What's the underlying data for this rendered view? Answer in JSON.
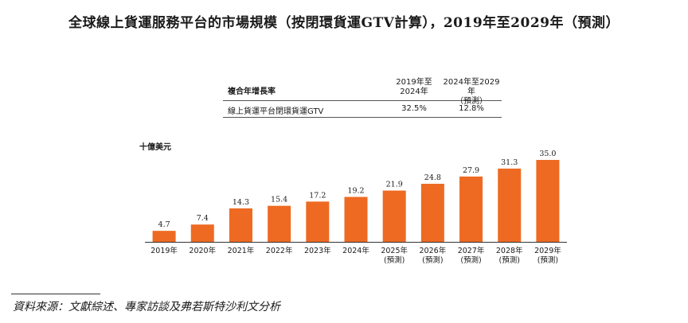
{
  "title": "全球線上貨運服務平台的市場規模（按閉環貨運GTV計算），2019年至2029年（預測）",
  "cagr_table": {
    "header_label": "複合年增長率",
    "col_a": [
      "2019年至",
      "2024年"
    ],
    "col_b": [
      "2024年至2029年",
      "（預測）"
    ],
    "row_label": "線上貨運平台閉環貨運GTV",
    "row_a": "32.5%",
    "row_b": "12.8%"
  },
  "unit_label": "十億美元",
  "source": "資料來源：文獻綜述、專家訪談及弗若斯特沙利文分析",
  "colors": {
    "bar": "#ee6a22",
    "axis": "#333333",
    "text": "#1a1a1a"
  },
  "chart_data": {
    "type": "bar",
    "title": "全球線上貨運服務平台的市場規模（按閉環貨運GTV計算），2019年至2029年（預測）",
    "ylabel": "十億美元",
    "ylim": [
      0,
      35
    ],
    "grid": false,
    "categories": [
      [
        "2019年"
      ],
      [
        "2020年"
      ],
      [
        "2021年"
      ],
      [
        "2022年"
      ],
      [
        "2023年"
      ],
      [
        "2024年"
      ],
      [
        "2025年",
        "(預測)"
      ],
      [
        "2026年",
        "(預測)"
      ],
      [
        "2027年",
        "(預測)"
      ],
      [
        "2028年",
        "(預測)"
      ],
      [
        "2029年",
        "(預測)"
      ]
    ],
    "values": [
      4.7,
      7.4,
      14.3,
      15.4,
      17.2,
      19.2,
      21.9,
      24.8,
      27.9,
      31.3,
      35.0
    ],
    "labels": [
      "4.7",
      "7.4",
      "14.3",
      "15.4",
      "17.2",
      "19.2",
      "21.9",
      "24.8",
      "27.9",
      "31.3",
      "35.0"
    ]
  }
}
